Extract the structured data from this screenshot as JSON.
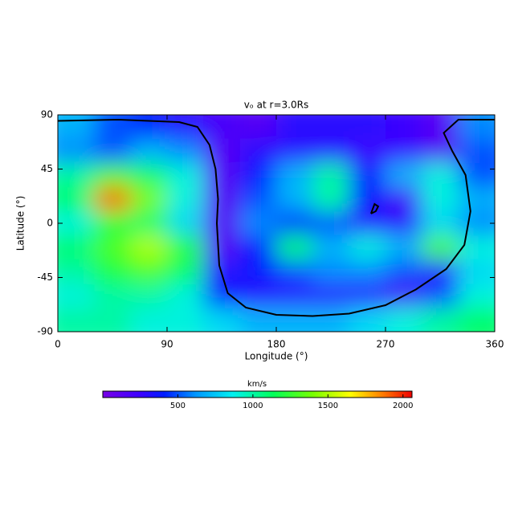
{
  "chart_data": {
    "type": "heatmap",
    "title": "vₒ at r=3.0Rs",
    "x_label": "Longitude (°)",
    "y_label": "Latitude (°)",
    "xlim": [
      0,
      360
    ],
    "ylim": [
      -90,
      90
    ],
    "xticks": [
      0,
      90,
      180,
      270,
      360
    ],
    "yticks": [
      -90,
      -45,
      0,
      45,
      90
    ],
    "x": [
      15,
      45,
      75,
      105,
      135,
      165,
      195,
      225,
      255,
      285,
      315,
      345
    ],
    "y": [
      80,
      60,
      40,
      20,
      0,
      -20,
      -40,
      -60,
      -80
    ],
    "values": [
      [
        700,
        500,
        400,
        300,
        200,
        150,
        300,
        300,
        300,
        250,
        150,
        600
      ],
      [
        600,
        500,
        700,
        600,
        150,
        300,
        300,
        300,
        250,
        250,
        150,
        500
      ],
      [
        1000,
        1300,
        1100,
        900,
        150,
        400,
        700,
        1000,
        400,
        700,
        900,
        500
      ],
      [
        1100,
        1900,
        1400,
        900,
        150,
        500,
        700,
        1000,
        400,
        200,
        900,
        700
      ],
      [
        900,
        1200,
        1100,
        800,
        150,
        600,
        400,
        500,
        300,
        300,
        800,
        600
      ],
      [
        1100,
        1300,
        1500,
        1200,
        150,
        400,
        1100,
        700,
        900,
        700,
        1300,
        900
      ],
      [
        1000,
        1200,
        1300,
        1100,
        300,
        400,
        500,
        600,
        600,
        500,
        300,
        800
      ],
      [
        900,
        1000,
        1000,
        900,
        400,
        300,
        300,
        300,
        300,
        200,
        500,
        900
      ],
      [
        1000,
        1000,
        900,
        900,
        800,
        700,
        700,
        700,
        800,
        900,
        1000,
        1100
      ]
    ],
    "colorbar": {
      "label": "km/s",
      "lim": [
        0,
        2060
      ],
      "ticks": [
        500,
        1000,
        1500,
        2000
      ]
    },
    "contours": [
      {
        "x": [
          0,
          50,
          100,
          115,
          125,
          130,
          132,
          131,
          133,
          140,
          155,
          180,
          210,
          240,
          270,
          295,
          320,
          335,
          340,
          336,
          325,
          318,
          330,
          360
        ],
        "y": [
          85,
          86,
          84,
          80,
          65,
          45,
          20,
          0,
          -35,
          -58,
          -70,
          -76,
          -77,
          -75,
          -68,
          -55,
          -38,
          -18,
          10,
          40,
          60,
          75,
          86,
          86
        ]
      },
      {
        "x": [
          258,
          262,
          264,
          261,
          258
        ],
        "y": [
          8,
          10,
          14,
          16,
          8
        ]
      }
    ]
  }
}
